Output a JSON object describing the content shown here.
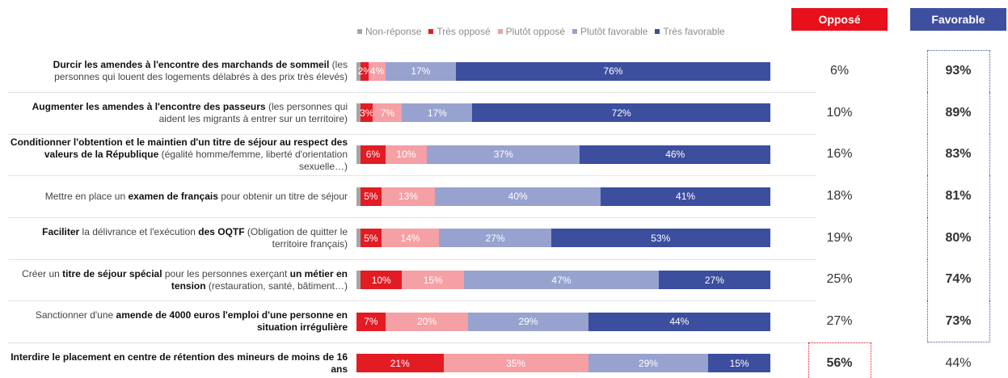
{
  "chart_data": {
    "type": "stacked-bar-horizontal",
    "categories": [
      [
        {
          "text": "Durcir les amendes à l'encontre des marchands de sommeil",
          "bold": true
        },
        {
          "text": " (les personnes qui louent des logements délabrés à des prix très élevés)",
          "bold": false
        }
      ],
      [
        {
          "text": "Augmenter les amendes à l'encontre des passeurs",
          "bold": true
        },
        {
          "text": " (les personnes qui aident les migrants à entrer sur un territoire)",
          "bold": false
        }
      ],
      [
        {
          "text": "Conditionner l'obtention et le maintien d'un titre de séjour au respect des valeurs de la République",
          "bold": true
        },
        {
          "text": " (égalité homme/femme, liberté d'orientation sexuelle…)",
          "bold": false
        }
      ],
      [
        {
          "text": "Mettre en place un ",
          "bold": false
        },
        {
          "text": "examen de français",
          "bold": true
        },
        {
          "text": " pour obtenir un titre de séjour",
          "bold": false
        }
      ],
      [
        {
          "text": "Faciliter",
          "bold": true
        },
        {
          "text": " la délivrance et l'exécution ",
          "bold": false
        },
        {
          "text": "des OQTF",
          "bold": true
        },
        {
          "text": " (Obligation de quitter le territoire français)",
          "bold": false
        }
      ],
      [
        {
          "text": "Créer un ",
          "bold": false
        },
        {
          "text": "titre de séjour spécial",
          "bold": true
        },
        {
          "text": " pour les personnes exerçant ",
          "bold": false
        },
        {
          "text": "un métier en tension",
          "bold": true
        },
        {
          "text": " (restauration, santé, bâtiment…)",
          "bold": false
        }
      ],
      [
        {
          "text": "Sanctionner d'une ",
          "bold": false
        },
        {
          "text": "amende de 4000 euros l'emploi d'une personne en situation irrégulière",
          "bold": true
        }
      ],
      [
        {
          "text": "Interdire le placement en centre de rétention des mineurs de moins de 16 ans",
          "bold": true
        }
      ]
    ],
    "xlim": [
      0,
      100
    ],
    "series": [
      {
        "name": "Non-réponse",
        "color": "#a6a6a6",
        "values": [
          1,
          1,
          1,
          1,
          1,
          1,
          0,
          0
        ]
      },
      {
        "name": "Très opposé",
        "color": "#e31b23",
        "values": [
          2,
          3,
          6,
          5,
          5,
          10,
          7,
          21
        ],
        "value_labels": [
          "2%",
          "3%",
          "6%",
          "5%",
          "5%",
          "10%",
          "7%",
          "21%"
        ]
      },
      {
        "name": "Plutôt opposé",
        "color": "#f4a0a4",
        "values": [
          4,
          7,
          10,
          13,
          14,
          15,
          20,
          35
        ],
        "value_labels": [
          "4%",
          "7%",
          "10%",
          "13%",
          "14%",
          "15%",
          "20%",
          "35%"
        ]
      },
      {
        "name": "Plutôt favorable",
        "color": "#97a2cf",
        "values": [
          17,
          17,
          37,
          40,
          27,
          47,
          29,
          29
        ],
        "value_labels": [
          "17%",
          "17%",
          "37%",
          "40%",
          "27%",
          "47%",
          "29%",
          "29%"
        ]
      },
      {
        "name": "Très favorable",
        "color": "#3c4e9e",
        "values": [
          76,
          72,
          46,
          41,
          53,
          27,
          44,
          15
        ],
        "value_labels": [
          "76%",
          "72%",
          "46%",
          "41%",
          "53%",
          "27%",
          "44%",
          "15%"
        ]
      }
    ],
    "totals": [
      {
        "name": "Opposé",
        "color": "#e8101a",
        "values": [
          6,
          10,
          16,
          18,
          19,
          25,
          27,
          56
        ],
        "value_labels": [
          "6%",
          "10%",
          "16%",
          "18%",
          "19%",
          "25%",
          "27%",
          "56%"
        ]
      },
      {
        "name": "Favorable",
        "color": "#3f4fa0",
        "values": [
          93,
          89,
          83,
          81,
          80,
          74,
          73,
          44
        ],
        "value_labels": [
          "93%",
          "89%",
          "83%",
          "81%",
          "80%",
          "74%",
          "73%",
          "44%"
        ]
      }
    ]
  }
}
